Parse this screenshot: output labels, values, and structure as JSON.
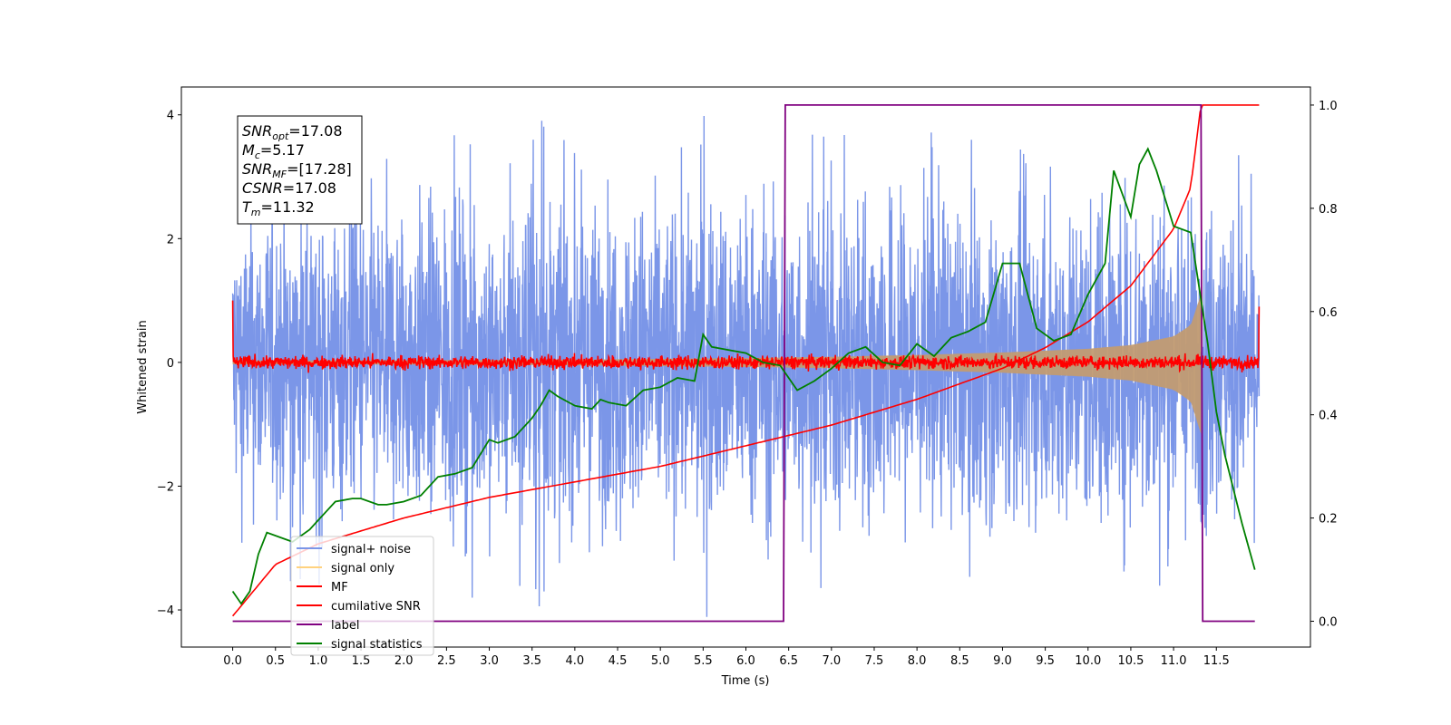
{
  "chart_data": {
    "type": "line",
    "xlabel": "Time (s)",
    "ylabel_left": "Whitened strain",
    "ylabel_right": "",
    "xlim": [
      -0.6,
      12.6
    ],
    "ylim_left": [
      -4.6,
      4.45
    ],
    "ylim_right": [
      -0.05,
      1.035
    ],
    "x_ticks": [
      0.0,
      0.5,
      1.0,
      1.5,
      2.0,
      2.5,
      3.0,
      3.5,
      4.0,
      4.5,
      5.0,
      5.5,
      6.0,
      6.5,
      7.0,
      7.5,
      8.0,
      8.5,
      9.0,
      9.5,
      10.0,
      10.5,
      11.0,
      11.5
    ],
    "x_tick_labels": [
      "0.0",
      "0.5",
      "1.0",
      "1.5",
      "2.0",
      "2.5",
      "3.0",
      "3.5",
      "4.0",
      "4.5",
      "5.0",
      "5.5",
      "6.0",
      "6.5",
      "7.0",
      "7.5",
      "8.0",
      "8.5",
      "9.0",
      "9.5",
      "10.0",
      "10.5",
      "11.0",
      "11.5"
    ],
    "y_left_ticks": [
      4,
      2,
      0,
      -2,
      -4
    ],
    "y_left_tick_labels": [
      "4",
      "2",
      "0",
      "−2",
      "−4"
    ],
    "y_right_ticks": [
      1.0,
      0.8,
      0.6,
      0.4,
      0.2,
      0.0
    ],
    "y_right_tick_labels": [
      "1.0",
      "0.8",
      "0.6",
      "0.4",
      "0.2",
      "0.0"
    ],
    "grid": false,
    "legend_placement": "lower-left",
    "annotation": {
      "lines": [
        {
          "sym": "SNR",
          "sub": "opt",
          "value": "=17.08"
        },
        {
          "sym": "M",
          "sub": "c",
          "value": "=5.17"
        },
        {
          "sym": "SNR",
          "sub": "MF",
          "value": "=[17.28]"
        },
        {
          "sym": "CSNR",
          "sub": "",
          "value": "=17.08"
        },
        {
          "sym": "T",
          "sub": "m",
          "value": "=11.32"
        }
      ]
    },
    "series": [
      {
        "name": "signal+ noise",
        "axis": "left",
        "color": "#7b96e8",
        "description_values": "dense noise, approx envelope",
        "envelope_x": [
          0.0,
          1.0,
          2.0,
          3.0,
          4.0,
          5.0,
          6.0,
          7.0,
          8.0,
          9.0,
          10.0,
          10.5,
          11.0,
          11.5,
          12.0
        ],
        "envelope_upper": [
          2.6,
          2.8,
          2.9,
          3.0,
          2.9,
          2.9,
          3.0,
          3.0,
          3.0,
          3.0,
          3.0,
          3.2,
          3.1,
          2.9,
          2.6
        ],
        "envelope_lower": [
          -2.6,
          -2.8,
          -2.9,
          -3.0,
          -2.9,
          -2.9,
          -3.0,
          -3.1,
          -3.0,
          -2.9,
          -3.0,
          -3.1,
          -3.0,
          -2.9,
          -2.6
        ],
        "peak_max": 4.0,
        "peak_min": -4.15
      },
      {
        "name": "signal only",
        "axis": "left",
        "color": "#ffd27f",
        "chirp_amplitude_x": [
          0.0,
          2.0,
          4.0,
          6.0,
          7.0,
          8.0,
          9.0,
          10.0,
          10.5,
          11.0,
          11.2,
          11.32
        ],
        "chirp_amplitude": [
          0.03,
          0.035,
          0.045,
          0.07,
          0.09,
          0.12,
          0.16,
          0.22,
          0.28,
          0.42,
          0.6,
          1.1
        ]
      },
      {
        "name": "MF",
        "axis": "left",
        "color": "#ff0000",
        "x_range": [
          0.0,
          12.0
        ],
        "baseline": 0.0,
        "noise_amplitude": 0.15,
        "edge_values": {
          "start": 1.0,
          "end": 0.9
        }
      },
      {
        "name": "cumilative SNR",
        "axis": "right",
        "color": "#ff0000",
        "x": [
          0.0,
          0.5,
          1.0,
          2.0,
          3.0,
          4.0,
          5.0,
          6.0,
          7.0,
          8.0,
          9.0,
          9.5,
          10.0,
          10.5,
          11.0,
          11.2,
          11.32,
          12.0
        ],
        "y": [
          0.01,
          0.11,
          0.15,
          0.2,
          0.24,
          0.27,
          0.3,
          0.34,
          0.38,
          0.43,
          0.49,
          0.53,
          0.58,
          0.65,
          0.76,
          0.84,
          1.0,
          1.0
        ]
      },
      {
        "name": "label",
        "axis": "right",
        "color": "#800080",
        "x": [
          0.0,
          6.44,
          6.46,
          11.32,
          11.34,
          11.95
        ],
        "y": [
          0.0,
          0.0,
          1.0,
          1.0,
          0.0,
          0.0
        ]
      },
      {
        "name": "signal statistics",
        "axis": "left",
        "color": "#008000",
        "x": [
          0.0,
          0.1,
          0.2,
          0.3,
          0.4,
          0.6,
          0.7,
          0.9,
          1.0,
          1.1,
          1.2,
          1.4,
          1.5,
          1.7,
          1.8,
          2.0,
          2.2,
          2.4,
          2.6,
          2.8,
          3.0,
          3.1,
          3.3,
          3.5,
          3.6,
          3.7,
          3.8,
          4.0,
          4.2,
          4.3,
          4.4,
          4.6,
          4.8,
          5.0,
          5.2,
          5.4,
          5.5,
          5.6,
          5.8,
          6.0,
          6.2,
          6.4,
          6.6,
          6.8,
          7.0,
          7.2,
          7.4,
          7.6,
          7.8,
          8.0,
          8.2,
          8.4,
          8.6,
          8.8,
          9.0,
          9.2,
          9.4,
          9.6,
          9.8,
          10.0,
          10.2,
          10.3,
          10.5,
          10.6,
          10.7,
          10.8,
          11.0,
          11.2,
          11.4,
          11.5,
          11.6,
          11.8,
          11.95
        ],
        "y": [
          -3.7,
          -3.9,
          -3.7,
          -3.1,
          -2.75,
          -2.85,
          -2.9,
          -2.7,
          -2.55,
          -2.4,
          -2.25,
          -2.2,
          -2.2,
          -2.3,
          -2.3,
          -2.25,
          -2.15,
          -1.85,
          -1.8,
          -1.7,
          -1.25,
          -1.3,
          -1.2,
          -0.9,
          -0.7,
          -0.45,
          -0.55,
          -0.7,
          -0.75,
          -0.6,
          -0.65,
          -0.7,
          -0.45,
          -0.4,
          -0.25,
          -0.3,
          0.45,
          0.25,
          0.2,
          0.15,
          0.0,
          -0.05,
          -0.45,
          -0.3,
          -0.1,
          0.15,
          0.25,
          0.0,
          -0.05,
          0.3,
          0.1,
          0.4,
          0.5,
          0.65,
          1.6,
          1.6,
          0.55,
          0.35,
          0.45,
          1.1,
          1.6,
          3.1,
          2.35,
          3.2,
          3.45,
          3.1,
          2.2,
          2.1,
          0.3,
          -0.8,
          -1.5,
          -2.6,
          -3.35
        ]
      }
    ]
  }
}
